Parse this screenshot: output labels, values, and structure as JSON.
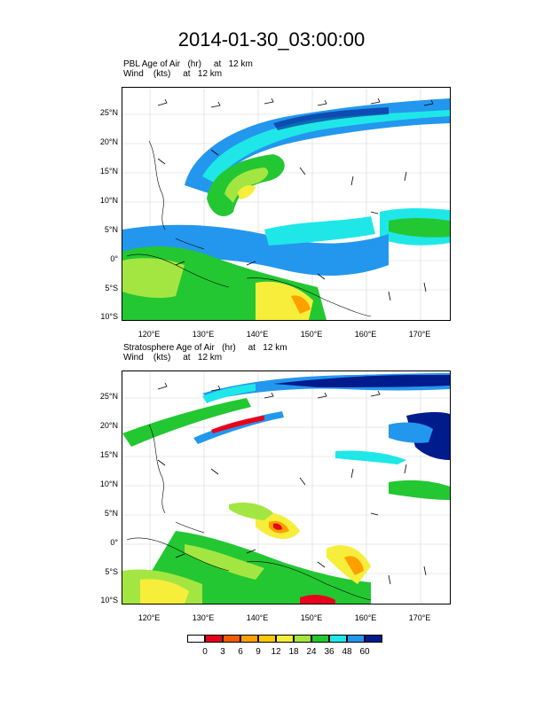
{
  "title": "2014-01-30_03:00:00",
  "panels": [
    {
      "subtitle_line1": "PBL Age of Air   (hr)     at   12 km",
      "subtitle_line2": "Wind    (kts)     at   12 km"
    },
    {
      "subtitle_line1": "Stratosphere Age of Air   (hr)     at   12 km",
      "subtitle_line2": "Wind    (kts)     at   12 km"
    }
  ],
  "lat_labels": [
    "25°N",
    "20°N",
    "15°N",
    "10°N",
    "5°N",
    "0°",
    "5°S",
    "10°S"
  ],
  "lon_labels": [
    "120°E",
    "130°E",
    "140°E",
    "150°E",
    "160°E",
    "170°E"
  ],
  "legend": {
    "labels": [
      "0",
      "3",
      "6",
      "9",
      "12",
      "18",
      "24",
      "36",
      "48",
      "60"
    ],
    "colors": [
      "#ffffff",
      "#e8001c",
      "#f55a00",
      "#ff9f00",
      "#ffc800",
      "#f6ee3a",
      "#a4e641",
      "#23c732",
      "#1fe7e8",
      "#2397ee",
      "#001b8c"
    ]
  }
}
